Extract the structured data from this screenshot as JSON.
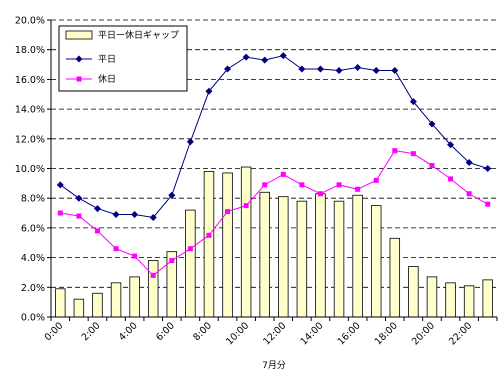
{
  "chart_data": {
    "type": "bar+line",
    "xlabel": "7月分",
    "ylabel": "",
    "ylim": [
      0,
      20
    ],
    "y_ticks": [
      "0.0%",
      "2.0%",
      "4.0%",
      "6.0%",
      "8.0%",
      "10.0%",
      "12.0%",
      "14.0%",
      "16.0%",
      "18.0%",
      "20.0%"
    ],
    "x_tick_labels": [
      "0:00",
      "2:00",
      "4:00",
      "6:00",
      "8:00",
      "10:00",
      "12:00",
      "14:00",
      "16:00",
      "18:00",
      "20:00",
      "22:00"
    ],
    "grid": "horizontal dashed",
    "legend_position": "top-left",
    "categories": [
      "0:00",
      "1:00",
      "2:00",
      "3:00",
      "4:00",
      "5:00",
      "6:00",
      "7:00",
      "8:00",
      "9:00",
      "10:00",
      "11:00",
      "12:00",
      "13:00",
      "14:00",
      "15:00",
      "16:00",
      "17:00",
      "18:00",
      "19:00",
      "20:00",
      "21:00",
      "22:00",
      "23:00"
    ],
    "series": [
      {
        "name": "平日ー休日ギャップ",
        "kind": "bar",
        "color": "#ffffcc",
        "values": [
          1.9,
          1.2,
          1.6,
          2.3,
          2.7,
          3.8,
          4.4,
          7.2,
          9.8,
          9.7,
          10.1,
          8.4,
          8.1,
          7.8,
          8.3,
          7.8,
          8.2,
          7.5,
          5.3,
          3.4,
          2.7,
          2.3,
          2.1,
          2.5
        ]
      },
      {
        "name": "平日",
        "kind": "line",
        "color": "#000080",
        "marker": "diamond",
        "values": [
          8.9,
          8.0,
          7.3,
          6.9,
          6.9,
          6.7,
          8.2,
          11.8,
          15.2,
          16.7,
          17.5,
          17.3,
          17.6,
          16.7,
          16.7,
          16.6,
          16.8,
          16.6,
          16.6,
          14.5,
          13.0,
          11.6,
          10.4,
          10.0
        ]
      },
      {
        "name": "休日",
        "kind": "line",
        "color": "#ff00ff",
        "marker": "square",
        "values": [
          7.0,
          6.8,
          5.8,
          4.6,
          4.1,
          2.8,
          3.8,
          4.6,
          5.5,
          7.1,
          7.5,
          8.9,
          9.6,
          8.9,
          8.3,
          8.9,
          8.6,
          9.2,
          11.2,
          11.0,
          10.2,
          9.3,
          8.3,
          7.6
        ]
      }
    ]
  }
}
